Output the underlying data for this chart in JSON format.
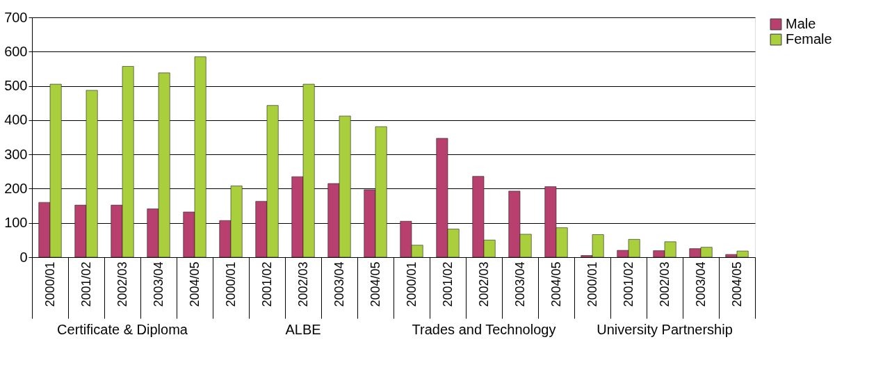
{
  "chart_data": {
    "type": "bar",
    "categories": [
      "2000/01",
      "2001/02",
      "2002/03",
      "2003/04",
      "2004/05",
      "2000/01",
      "2001/02",
      "2002/03",
      "2003/04",
      "2004/05",
      "2000/01",
      "2001/02",
      "2002/03",
      "2003/04",
      "2004/05",
      "2000/01",
      "2001/02",
      "2002/03",
      "2003/04",
      "2004/05"
    ],
    "series": [
      {
        "name": "Male",
        "color": "#b8406e",
        "values": [
          160,
          152,
          152,
          141,
          132,
          107,
          163,
          235,
          215,
          197,
          105,
          347,
          236,
          193,
          206,
          5,
          20,
          19,
          25,
          8
        ]
      },
      {
        "name": "Female",
        "color": "#a9cf3d",
        "values": [
          505,
          487,
          557,
          538,
          585,
          208,
          443,
          505,
          412,
          381,
          35,
          82,
          50,
          67,
          86,
          66,
          52,
          45,
          29,
          18
        ]
      }
    ],
    "ylim": [
      0,
      700
    ],
    "yticks": [
      0,
      100,
      200,
      300,
      400,
      500,
      600,
      700
    ],
    "grid": "y",
    "legend": "top right",
    "annotations": [
      "Certificate & Diploma",
      "ALBE",
      "Trades and Technology",
      "University Partnership"
    ]
  }
}
